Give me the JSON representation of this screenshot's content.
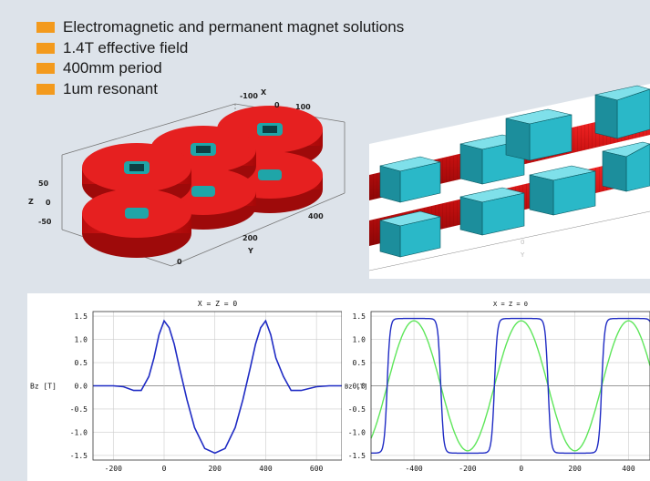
{
  "bullets": [
    "Electromagnetic and permanent magnet solutions",
    "1.4T effective field",
    "400mm period",
    "1um resonant"
  ],
  "colors": {
    "bullet": "#f39a1d",
    "magnet_red": "#e01818",
    "magnet_cyan": "#2ab8c8",
    "bz_curve": "#1f2bc4",
    "fit_curve": "#5ee65a"
  },
  "model3d": {
    "axis_x": "X",
    "axis_y": "Y",
    "axis_z": "Z",
    "x_ticks": [
      "-100",
      "0",
      "100"
    ],
    "y_ticks": [
      "0",
      "200",
      "400"
    ],
    "z_ticks": [
      "50",
      "0",
      "-50"
    ]
  },
  "model3d_right": {
    "y_ticks": [
      "0"
    ],
    "axis_y": "Y"
  },
  "chart_data": [
    {
      "type": "line",
      "title": "X = Z = 0",
      "xlabel": "",
      "ylabel": "Bz [T]",
      "xlim": [
        -280,
        700
      ],
      "ylim": [
        -1.6,
        1.6
      ],
      "xticks": [
        -200,
        0,
        200,
        400,
        600
      ],
      "yticks": [
        1.5,
        1.0,
        0.5,
        0.0,
        -0.5,
        -1.0,
        -1.5
      ],
      "ytick_labels": [
        "1.5",
        "1.0",
        "0.5",
        "0.0",
        "-0.5",
        "-1.0",
        "-1.5"
      ],
      "grid": true,
      "series": [
        {
          "color": "#1f2bc4",
          "x": [
            -280,
            -200,
            -160,
            -120,
            -90,
            -60,
            -40,
            -20,
            0,
            20,
            40,
            60,
            90,
            120,
            160,
            200,
            240,
            280,
            310,
            340,
            360,
            380,
            400,
            420,
            440,
            470,
            500,
            540,
            600,
            650,
            700
          ],
          "y": [
            0,
            0,
            -0.02,
            -0.1,
            -0.1,
            0.2,
            0.6,
            1.1,
            1.4,
            1.25,
            0.9,
            0.4,
            -0.3,
            -0.9,
            -1.35,
            -1.45,
            -1.35,
            -0.9,
            -0.3,
            0.4,
            0.9,
            1.25,
            1.4,
            1.1,
            0.6,
            0.2,
            -0.1,
            -0.1,
            -0.02,
            0,
            0
          ]
        }
      ]
    },
    {
      "type": "line",
      "title": "X = Z =  0",
      "xlabel": "",
      "ylabel": "Bz [T]",
      "xlim": [
        -560,
        480
      ],
      "ylim": [
        -1.6,
        1.6
      ],
      "xticks": [
        -400,
        -200,
        0,
        200,
        400
      ],
      "yticks": [
        1.5,
        1.0,
        0.5,
        0.0,
        -0.5,
        -1.0,
        -1.5
      ],
      "ytick_labels": [
        "1.5",
        "1.0",
        "0.5",
        "0.0",
        "-0.5",
        "-1.0",
        "-1.5"
      ],
      "grid": true,
      "series": [
        {
          "color": "#1f2bc4",
          "shape": "square-wave",
          "amplitude": 1.45,
          "period": 400,
          "peak_at": -400
        },
        {
          "color": "#5ee65a",
          "shape": "sine",
          "amplitude": 1.4,
          "period": 400,
          "peak_at": -400
        }
      ]
    }
  ]
}
